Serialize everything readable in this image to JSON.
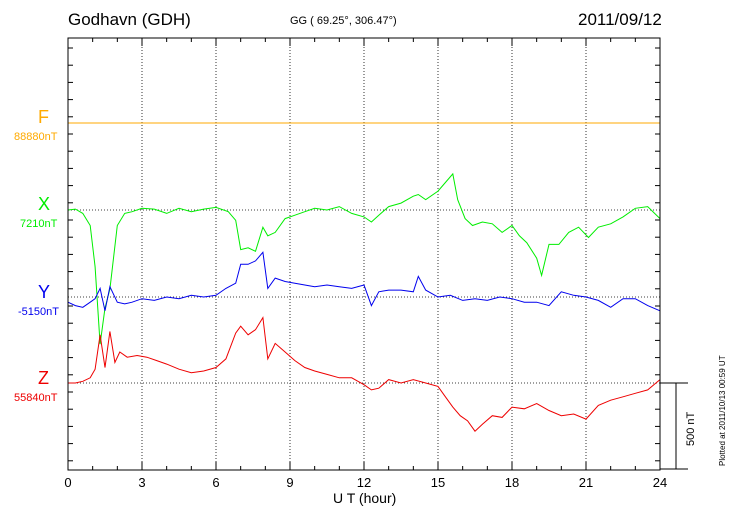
{
  "header": {
    "station": "Godhavn (GDH)",
    "coords": "GG ( 69.25°, 306.47°)",
    "date": "2011/09/12"
  },
  "footer": {
    "plotted": "Plotted at 2011/10/13 00:59 UT",
    "scale_bar": "500 nT"
  },
  "chart_data": {
    "type": "line",
    "title": "Godhavn (GDH)",
    "xlabel": "U T (hour)",
    "ylabel": "",
    "xlim": [
      0,
      24
    ],
    "x_ticks": [
      "0",
      "3",
      "6",
      "9",
      "12",
      "15",
      "18",
      "21",
      "24"
    ],
    "grid": true,
    "y_scale_bar_nT": 500,
    "colors": {
      "F": "#ffaa00",
      "X": "#00ee00",
      "Y": "#0000ee",
      "Z": "#ee0000"
    },
    "series": [
      {
        "name": "F",
        "baseline_label": "88880nT",
        "baseline_nT": 88880,
        "x": [
          0,
          24
        ],
        "values": [
          88880,
          88880
        ]
      },
      {
        "name": "X",
        "baseline_label": "7210nT",
        "baseline_nT": 7210,
        "x": [
          0,
          0.3,
          0.6,
          0.9,
          1.1,
          1.3,
          1.5,
          1.7,
          2.0,
          2.3,
          2.6,
          3.0,
          3.5,
          4,
          4.5,
          5,
          5.5,
          6,
          6.5,
          6.8,
          7.0,
          7.3,
          7.6,
          7.9,
          8.1,
          8.4,
          8.8,
          9.2,
          9.6,
          10,
          10.5,
          11,
          11.5,
          12,
          12.3,
          12.6,
          13,
          13.5,
          14,
          14.2,
          14.5,
          15,
          15.3,
          15.6,
          15.8,
          16.1,
          16.4,
          16.8,
          17.2,
          17.6,
          18,
          18.3,
          18.6,
          19,
          19.2,
          19.5,
          19.9,
          20.3,
          20.7,
          21.1,
          21.5,
          22,
          22.5,
          23,
          23.5,
          24
        ],
        "values": [
          7210,
          7215,
          7190,
          7120,
          6880,
          6430,
          6640,
          6750,
          7120,
          7190,
          7200,
          7220,
          7215,
          7190,
          7220,
          7200,
          7215,
          7225,
          7200,
          7150,
          6980,
          6990,
          6970,
          7110,
          7060,
          7080,
          7160,
          7180,
          7200,
          7220,
          7210,
          7230,
          7190,
          7170,
          7140,
          7180,
          7230,
          7250,
          7290,
          7300,
          7270,
          7320,
          7370,
          7420,
          7270,
          7160,
          7120,
          7140,
          7130,
          7080,
          7120,
          7060,
          7020,
          6930,
          6830,
          7010,
          7010,
          7080,
          7110,
          7050,
          7110,
          7130,
          7170,
          7220,
          7230,
          7160
        ]
      },
      {
        "name": "Y",
        "baseline_label": "-5150nT",
        "baseline_nT": -5150,
        "x": [
          0,
          0.3,
          0.6,
          0.9,
          1.1,
          1.3,
          1.5,
          1.7,
          2.0,
          2.3,
          2.6,
          3.0,
          3.5,
          4,
          4.5,
          5,
          5.5,
          6,
          6.4,
          6.8,
          7.0,
          7.3,
          7.6,
          7.9,
          8.1,
          8.4,
          8.8,
          9.2,
          9.6,
          10,
          10.5,
          11,
          11.5,
          12,
          12.3,
          12.6,
          13,
          13.5,
          14,
          14.2,
          14.5,
          15,
          15.5,
          16,
          16.5,
          17,
          17.5,
          18,
          18.5,
          19,
          19.5,
          20,
          20.5,
          21,
          21.5,
          22,
          22.5,
          23,
          23.5,
          24
        ],
        "values": [
          -5180,
          -5200,
          -5210,
          -5180,
          -5160,
          -5100,
          -5230,
          -5090,
          -5180,
          -5190,
          -5180,
          -5160,
          -5170,
          -5150,
          -5160,
          -5140,
          -5150,
          -5140,
          -5100,
          -5070,
          -4960,
          -4960,
          -4940,
          -4890,
          -5100,
          -5040,
          -5060,
          -5070,
          -5080,
          -5090,
          -5080,
          -5090,
          -5100,
          -5080,
          -5200,
          -5120,
          -5110,
          -5110,
          -5120,
          -5030,
          -5110,
          -5150,
          -5140,
          -5170,
          -5160,
          -5170,
          -5150,
          -5160,
          -5180,
          -5180,
          -5200,
          -5120,
          -5140,
          -5150,
          -5170,
          -5210,
          -5160,
          -5160,
          -5200,
          -5230
        ]
      },
      {
        "name": "Z",
        "baseline_label": "55840nT",
        "baseline_nT": 55840,
        "x": [
          0,
          0.3,
          0.6,
          0.9,
          1.1,
          1.3,
          1.5,
          1.7,
          1.9,
          2.1,
          2.4,
          2.8,
          3.2,
          3.6,
          4,
          4.5,
          5,
          5.5,
          6,
          6.4,
          6.8,
          7.0,
          7.3,
          7.6,
          7.9,
          8.1,
          8.4,
          8.8,
          9.2,
          9.6,
          10,
          10.5,
          11,
          11.5,
          12,
          12.3,
          12.6,
          13,
          13.5,
          14,
          14.5,
          15,
          15.3,
          15.6,
          15.9,
          16.2,
          16.5,
          16.8,
          17.2,
          17.6,
          18,
          18.5,
          19,
          19.5,
          20,
          20.5,
          21,
          21.5,
          22,
          22.5,
          23,
          23.5,
          24
        ],
        "values": [
          55840,
          55840,
          55850,
          55870,
          55920,
          56120,
          55930,
          56140,
          55960,
          56020,
          55990,
          56000,
          55990,
          55970,
          55950,
          55920,
          55900,
          55910,
          55930,
          55980,
          56130,
          56170,
          56120,
          56150,
          56220,
          55980,
          56070,
          56020,
          55970,
          55930,
          55910,
          55890,
          55870,
          55870,
          55830,
          55800,
          55810,
          55860,
          55840,
          55860,
          55840,
          55820,
          55760,
          55700,
          55650,
          55620,
          55560,
          55600,
          55650,
          55640,
          55700,
          55690,
          55720,
          55680,
          55650,
          55660,
          55630,
          55710,
          55740,
          55760,
          55780,
          55800,
          55860
        ]
      }
    ]
  }
}
